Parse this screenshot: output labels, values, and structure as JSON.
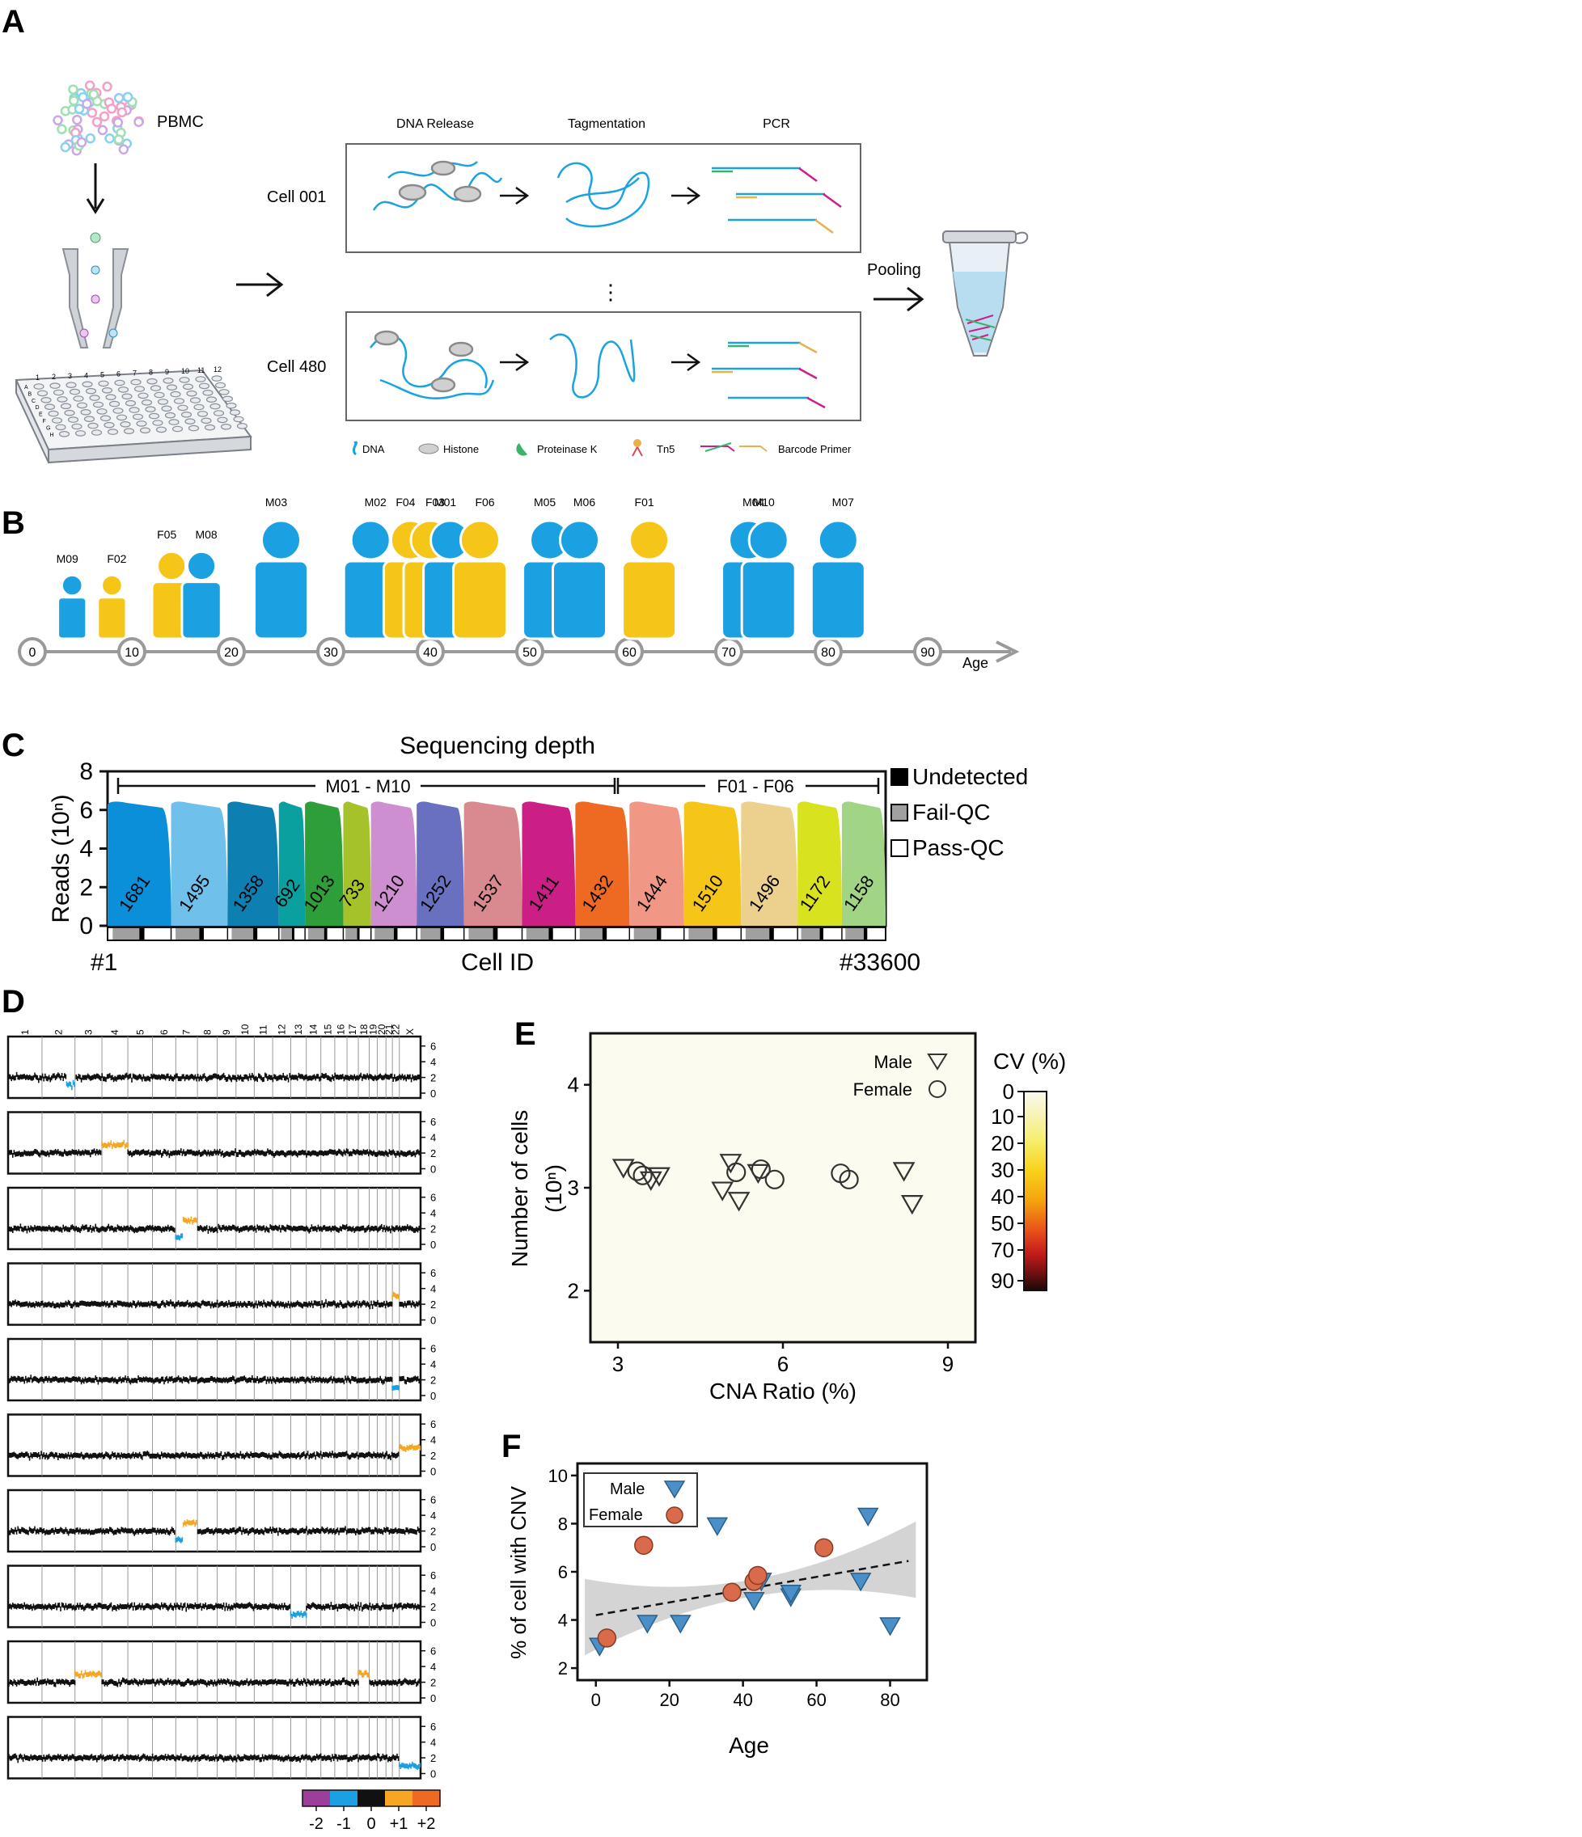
{
  "panels": {
    "A": "A",
    "B": "B",
    "C": "C",
    "D": "D",
    "E": "E",
    "F": "F"
  },
  "panel_a": {
    "pbmc": "PBMC",
    "steps": [
      "DNA Release",
      "Tagmentation",
      "PCR"
    ],
    "cells": [
      "Cell 001",
      "Cell 480"
    ],
    "pooling": "Pooling",
    "plate_rows": [
      "A",
      "B",
      "C",
      "D",
      "E",
      "F",
      "G",
      "H"
    ],
    "plate_cols": [
      "1",
      "2",
      "3",
      "4",
      "5",
      "6",
      "7",
      "8",
      "9",
      "10",
      "11",
      "12"
    ],
    "legend": [
      "DNA",
      "Histone",
      "Proteinase K",
      "Tn5",
      "Barcode Primer"
    ],
    "colors": {
      "dna": "#1aa3e0",
      "histone": "#c8c8c8",
      "protk": "#3ab36a",
      "tn5_a": "#e8b24a",
      "tn5_b": "#d84a5a"
    }
  },
  "panel_b": {
    "age_label": "Age",
    "ticks": [
      "0",
      "10",
      "20",
      "30",
      "40",
      "50",
      "60",
      "70",
      "80",
      "90"
    ],
    "donors": [
      {
        "id": "M09",
        "sex": "M",
        "age": 4
      },
      {
        "id": "F02",
        "sex": "F",
        "age": 8
      },
      {
        "id": "F05",
        "sex": "F",
        "age": 14
      },
      {
        "id": "M08",
        "sex": "M",
        "age": 17
      },
      {
        "id": "M03",
        "sex": "M",
        "age": 25
      },
      {
        "id": "M02",
        "sex": "M",
        "age": 34
      },
      {
        "id": "F04",
        "sex": "F",
        "age": 38
      },
      {
        "id": "F03",
        "sex": "F",
        "age": 40
      },
      {
        "id": "M01",
        "sex": "M",
        "age": 42
      },
      {
        "id": "F06",
        "sex": "F",
        "age": 45
      },
      {
        "id": "M05",
        "sex": "M",
        "age": 52
      },
      {
        "id": "M06",
        "sex": "M",
        "age": 55
      },
      {
        "id": "F01",
        "sex": "F",
        "age": 62
      },
      {
        "id": "M04",
        "sex": "M",
        "age": 72
      },
      {
        "id": "M10",
        "sex": "M",
        "age": 74
      },
      {
        "id": "M07",
        "sex": "M",
        "age": 81
      }
    ],
    "colors": {
      "M": "#1ba1e2",
      "F": "#f5c518"
    }
  },
  "chart_data": [
    {
      "type": "area",
      "panel": "C",
      "title": "Sequencing depth",
      "xlabel": "Cell ID",
      "ylabel": "Reads (10ⁿ)",
      "x_start": "#1",
      "x_end": "#33600",
      "yticks": [
        "0",
        "2",
        "4",
        "6",
        "8"
      ],
      "ylim": [
        0,
        8
      ],
      "groups": [
        {
          "label": "M01 - M10"
        },
        {
          "label": "F01 - F06"
        }
      ],
      "legend": [
        "Undetected",
        "Fail-QC",
        "Pass-QC"
      ],
      "series": [
        {
          "count": "1681",
          "color": "#0a8fd8"
        },
        {
          "count": "1495",
          "color": "#6fc0ea"
        },
        {
          "count": "1358",
          "color": "#0d7fb0"
        },
        {
          "count": "692",
          "color": "#0aa0a0"
        },
        {
          "count": "1013",
          "color": "#2e9e3a"
        },
        {
          "count": "733",
          "color": "#a6c22a"
        },
        {
          "count": "1210",
          "color": "#cd8fcf"
        },
        {
          "count": "1252",
          "color": "#6a70c0"
        },
        {
          "count": "1537",
          "color": "#d88a90"
        },
        {
          "count": "1411",
          "color": "#cc1f86"
        },
        {
          "count": "1432",
          "color": "#ee6a23"
        },
        {
          "count": "1444",
          "color": "#f09885"
        },
        {
          "count": "1510",
          "color": "#f5c518"
        },
        {
          "count": "1496",
          "color": "#ecd08e"
        },
        {
          "count": "1172",
          "color": "#d8e21e"
        },
        {
          "count": "1158",
          "color": "#a2d486"
        }
      ]
    },
    {
      "type": "heatmap",
      "panel": "D",
      "chromosomes": [
        "1",
        "2",
        "3",
        "4",
        "5",
        "6",
        "7",
        "8",
        "9",
        "10",
        "11",
        "12",
        "13",
        "14",
        "15",
        "16",
        "17",
        "18",
        "19",
        "20",
        "21",
        "22",
        "X"
      ],
      "yticks": [
        "0",
        "2",
        "4",
        "6"
      ],
      "scale_ticks": [
        "-2",
        "-1",
        "0",
        "+1",
        "+2"
      ],
      "scale_colors": [
        "#9b3f9b",
        "#1ba1e2",
        "#111111",
        "#f5a623",
        "#ee6a23"
      ],
      "cells": [
        [
          {
            "chr": "2",
            "frac": [
              0.75,
              1.0
            ],
            "state": -1
          }
        ],
        [
          {
            "chr": "4",
            "frac": [
              0.0,
              1.0
            ],
            "state": 1
          }
        ],
        [
          {
            "chr": "7",
            "frac": [
              0.0,
              0.35
            ],
            "state": -1
          },
          {
            "chr": "7",
            "frac": [
              0.35,
              1.0
            ],
            "state": 1
          }
        ],
        [
          {
            "chr": "22",
            "frac": [
              0.0,
              1.0
            ],
            "state": 1
          }
        ],
        [
          {
            "chr": "22",
            "frac": [
              0.0,
              1.0
            ],
            "state": -1
          }
        ],
        [
          {
            "chr": "X",
            "frac": [
              0.0,
              1.0
            ],
            "state": 1
          }
        ],
        [
          {
            "chr": "7",
            "frac": [
              0.0,
              0.35
            ],
            "state": -1
          },
          {
            "chr": "7",
            "frac": [
              0.35,
              1.0
            ],
            "state": 1
          }
        ],
        [
          {
            "chr": "13",
            "frac": [
              0.0,
              1.0
            ],
            "state": -1
          }
        ],
        [
          {
            "chr": "3",
            "frac": [
              0.0,
              1.0
            ],
            "state": 1
          },
          {
            "chr": "18",
            "frac": [
              0.0,
              1.0
            ],
            "state": 1
          }
        ],
        [
          {
            "chr": "X",
            "frac": [
              0.0,
              1.0
            ],
            "state": -1
          }
        ]
      ]
    },
    {
      "type": "scatter",
      "panel": "E",
      "xlabel": "CNA Ratio (%)",
      "ylabel": "Number of cells",
      "ylabel2": "(10ⁿ)",
      "xlim": [
        2.5,
        9.5
      ],
      "ylim": [
        1.5,
        4.5
      ],
      "xticks": [
        3,
        6,
        9
      ],
      "yticks": [
        2,
        3,
        4
      ],
      "legend": [
        "Male",
        "Female"
      ],
      "colorbar_title": "CV (%)",
      "colorbar_ticks": [
        "0",
        "10",
        "20",
        "30",
        "40",
        "50",
        "70",
        "90"
      ],
      "series": [
        {
          "name": "Male",
          "marker": "triangle-down",
          "points": [
            [
              3.1,
              3.2
            ],
            [
              3.6,
              3.08
            ],
            [
              3.75,
              3.12
            ],
            [
              4.9,
              2.98
            ],
            [
              5.05,
              3.25
            ],
            [
              5.2,
              2.88
            ],
            [
              5.55,
              3.15
            ],
            [
              8.2,
              3.17
            ],
            [
              8.35,
              2.85
            ]
          ]
        },
        {
          "name": "Female",
          "marker": "circle",
          "points": [
            [
              3.35,
              3.16
            ],
            [
              3.45,
              3.12
            ],
            [
              5.15,
              3.15
            ],
            [
              5.6,
              3.18
            ],
            [
              5.85,
              3.08
            ],
            [
              7.05,
              3.14
            ],
            [
              7.2,
              3.08
            ]
          ]
        }
      ]
    },
    {
      "type": "scatter",
      "panel": "F",
      "xlabel": "Age",
      "ylabel": "% of cell with CNV",
      "xlim": [
        -5,
        90
      ],
      "ylim": [
        1.5,
        10.5
      ],
      "xticks": [
        0,
        20,
        40,
        60,
        80
      ],
      "yticks": [
        2,
        4,
        6,
        8,
        10
      ],
      "legend": [
        "Male",
        "Female"
      ],
      "colors": {
        "Male": "#4a8fc8",
        "Female": "#d96a4a"
      },
      "series": [
        {
          "name": "Male",
          "points": [
            [
              1,
              2.9
            ],
            [
              14,
              3.85
            ],
            [
              23,
              3.85
            ],
            [
              33,
              7.9
            ],
            [
              43,
              4.8
            ],
            [
              45,
              5.6
            ],
            [
              53,
              4.95
            ],
            [
              53,
              5.1
            ],
            [
              72,
              5.6
            ],
            [
              74,
              8.3
            ],
            [
              80,
              3.75
            ]
          ]
        },
        {
          "name": "Female",
          "points": [
            [
              3,
              3.25
            ],
            [
              13,
              7.1
            ],
            [
              37,
              5.15
            ],
            [
              43,
              5.6
            ],
            [
              44,
              5.85
            ],
            [
              62,
              7.0
            ]
          ]
        }
      ],
      "trend": {
        "x": [
          0,
          85
        ],
        "y": [
          4.2,
          6.45
        ]
      }
    }
  ]
}
